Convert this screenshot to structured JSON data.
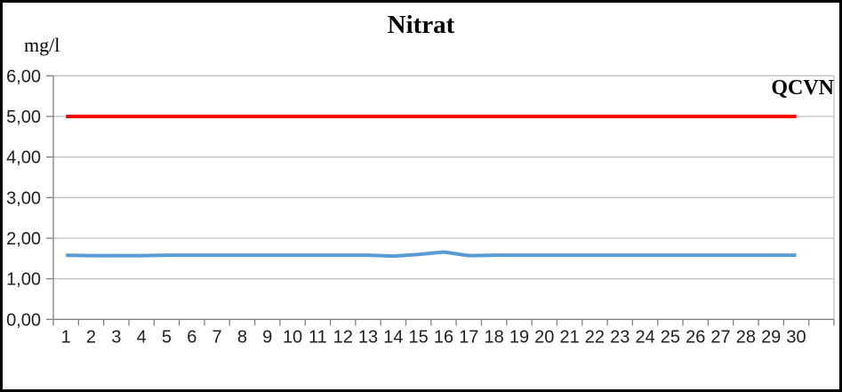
{
  "chart_data": {
    "type": "line",
    "title": "Nitrat",
    "ylabel": "mg/l",
    "annotation": "QCVN",
    "xlabel": "",
    "x": [
      1,
      2,
      3,
      4,
      5,
      6,
      7,
      8,
      9,
      10,
      11,
      12,
      13,
      14,
      15,
      16,
      17,
      18,
      19,
      20,
      21,
      22,
      23,
      24,
      25,
      26,
      27,
      28,
      29,
      30
    ],
    "y_ticks": [
      "0,00",
      "1,00",
      "2,00",
      "3,00",
      "4,00",
      "5,00",
      "6,00"
    ],
    "ylim": [
      0,
      6
    ],
    "grid": "horizontal",
    "legend": "none",
    "colors": {
      "qcvn_line": "#FF0000",
      "data_line": "#5B9BD5",
      "gridline": "#BFBFBF",
      "axis": "#808080",
      "tick_label": "#1f1f1f"
    },
    "series": [
      {
        "name": "QCVN",
        "color": "#FF0000",
        "values": [
          5,
          5,
          5,
          5,
          5,
          5,
          5,
          5,
          5,
          5,
          5,
          5,
          5,
          5,
          5,
          5,
          5,
          5,
          5,
          5,
          5,
          5,
          5,
          5,
          5,
          5,
          5,
          5,
          5,
          5
        ]
      },
      {
        "name": "Nitrat",
        "color": "#5B9BD5",
        "values": [
          1.58,
          1.57,
          1.57,
          1.57,
          1.58,
          1.58,
          1.58,
          1.58,
          1.58,
          1.58,
          1.58,
          1.58,
          1.58,
          1.56,
          1.6,
          1.66,
          1.57,
          1.58,
          1.58,
          1.58,
          1.58,
          1.58,
          1.58,
          1.58,
          1.58,
          1.58,
          1.58,
          1.58,
          1.58,
          1.58
        ]
      }
    ]
  }
}
